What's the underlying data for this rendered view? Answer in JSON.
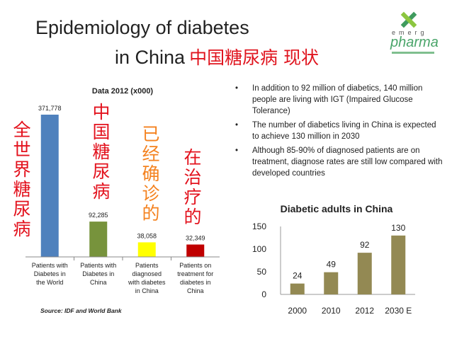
{
  "slide": {
    "title_line1": "Epidemiology of diabetes",
    "title_line2": "in China",
    "title_cn": "中国糖尿病 现状"
  },
  "logo": {
    "word1": "emerg",
    "word2": "pharma"
  },
  "bullets": [
    "In addition to 92 million of diabetics, 140 million people are living with IGT (Impaired Glucose Tolerance)",
    "The number of diabetics living in China is expected to achieve 130 million in 2030",
    "Although 85-90% of diagnosed patients are on treatment, diagnose rates are still low compared with developed countries"
  ],
  "bullet_glyph": "•",
  "annotations_cn": [
    "全世界糖尿病",
    "中国糖尿病",
    "已经确诊的",
    "在治疗的"
  ],
  "source": "Source: IDF and World Bank",
  "chart_data": [
    {
      "type": "bar",
      "title": "Data 2012 (x000)",
      "categories": [
        "Patients with Diabetes in the World",
        "Patients with Diabetes in China",
        "Patients diagnosed with diabetes in China",
        "Patients on treatment for diabetes in China"
      ],
      "values": [
        371778,
        92285,
        38058,
        32349
      ],
      "data_labels": [
        "371,778",
        "92,285",
        "38,058",
        "32,349"
      ],
      "colors": [
        "#4f81bd",
        "#77933c",
        "#ffff00",
        "#c00000"
      ],
      "ylim": [
        0,
        371778
      ],
      "grid": false,
      "legend": "none"
    },
    {
      "type": "bar",
      "title": "Diabetic adults in China",
      "categories": [
        "2000",
        "2010",
        "2012",
        "2030 E"
      ],
      "values": [
        24,
        49,
        92,
        130
      ],
      "data_labels": [
        "24",
        "49",
        "92",
        "130"
      ],
      "yticks": [
        "0",
        "50",
        "100",
        "150"
      ],
      "ylim": [
        0,
        150
      ],
      "color": "#938953",
      "grid": false,
      "legend": "none"
    }
  ]
}
